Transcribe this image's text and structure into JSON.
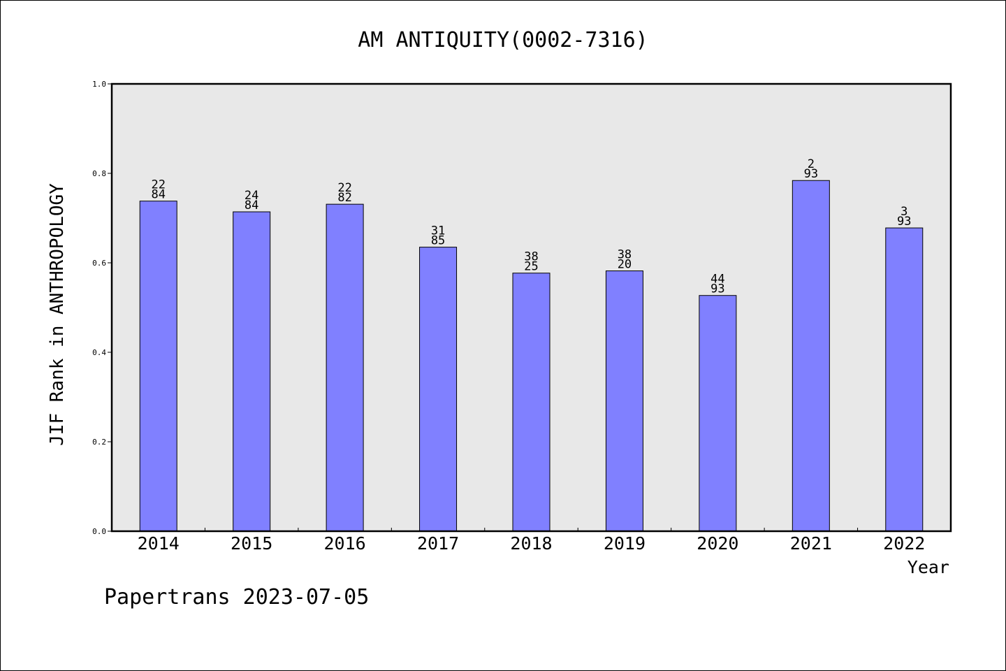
{
  "chart_data": {
    "type": "bar",
    "title": "AM ANTIQUITY(0002-7316)",
    "xlabel": "Year",
    "ylabel": "JIF Rank in ANTHROPOLOGY",
    "ylim": [
      0,
      1.0
    ],
    "yticks": [
      "0.0",
      "0.2",
      "0.4",
      "0.6",
      "0.8",
      "1.0"
    ],
    "grid": false,
    "categories": [
      "2014",
      "2015",
      "2016",
      "2017",
      "2018",
      "2019",
      "2020",
      "2021",
      "2022"
    ],
    "values": [
      0.738,
      0.714,
      0.731,
      0.635,
      0.577,
      0.582,
      0.527,
      0.784,
      0.678
    ],
    "labels": [
      {
        "top": "22",
        "bottom": "84"
      },
      {
        "top": "24",
        "bottom": "84"
      },
      {
        "top": "22",
        "bottom": "82"
      },
      {
        "top": "31",
        "bottom": "85"
      },
      {
        "top": "38",
        "bottom": "25"
      },
      {
        "top": "38",
        "bottom": "20"
      },
      {
        "top": "44",
        "bottom": "93"
      },
      {
        "top": "2",
        "bottom": "93"
      },
      {
        "top": "3",
        "bottom": "93"
      }
    ],
    "colors": {
      "bar": "#8080ff",
      "plot_bg": "#e8e8e8",
      "axis": "#000000"
    }
  },
  "footer": "Papertrans 2023-07-05"
}
